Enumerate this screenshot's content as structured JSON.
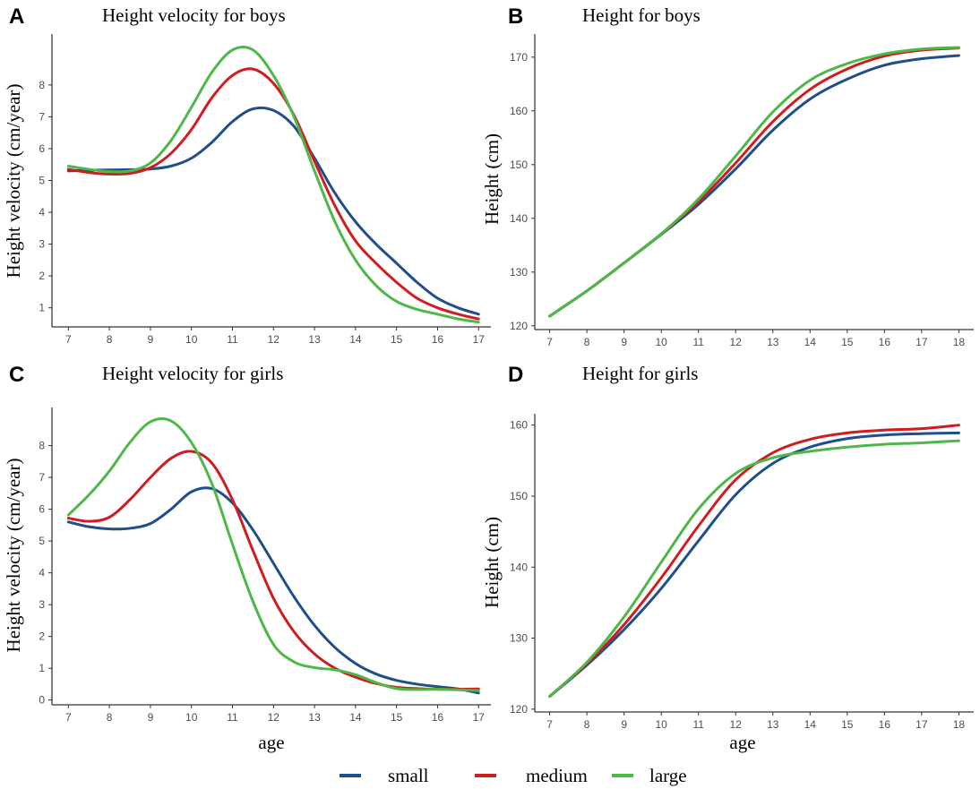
{
  "colors": {
    "small": "#1f4e8c",
    "medium": "#d01c1f",
    "large": "#4db848"
  },
  "legend": [
    {
      "key": "small",
      "label": "small"
    },
    {
      "key": "medium",
      "label": "medium"
    },
    {
      "key": "large",
      "label": "large"
    }
  ],
  "chart_data": [
    {
      "type": "line",
      "panel": "A",
      "title": "Height velocity for boys",
      "xlabel": "",
      "ylabel": "Height velocity (cm/year)",
      "xlim": [
        6.6,
        17.3
      ],
      "ylim": [
        0.4,
        9.6
      ],
      "xticks": [
        7,
        8,
        9,
        10,
        11,
        12,
        13,
        14,
        15,
        16,
        17
      ],
      "yticks": [
        1,
        2,
        3,
        4,
        5,
        6,
        7,
        8
      ],
      "series": [
        {
          "name": "small",
          "x": [
            7,
            7.5,
            8,
            8.5,
            9,
            9.5,
            10,
            10.5,
            11,
            11.5,
            12,
            12.5,
            13,
            13.5,
            14,
            14.5,
            15,
            15.5,
            16,
            16.5,
            17
          ],
          "y": [
            5.3,
            5.32,
            5.33,
            5.34,
            5.36,
            5.45,
            5.7,
            6.2,
            6.85,
            7.25,
            7.2,
            6.7,
            5.7,
            4.6,
            3.7,
            3.0,
            2.4,
            1.8,
            1.3,
            1.0,
            0.8
          ]
        },
        {
          "name": "medium",
          "x": [
            7,
            7.5,
            8,
            8.5,
            9,
            9.5,
            10,
            10.5,
            11,
            11.5,
            12,
            12.5,
            13,
            13.5,
            14,
            14.5,
            15,
            15.5,
            16,
            16.5,
            17
          ],
          "y": [
            5.35,
            5.25,
            5.2,
            5.22,
            5.4,
            5.85,
            6.6,
            7.6,
            8.3,
            8.5,
            8.05,
            7.05,
            5.6,
            4.2,
            3.1,
            2.4,
            1.8,
            1.3,
            1.0,
            0.8,
            0.65
          ]
        },
        {
          "name": "large",
          "x": [
            7,
            7.5,
            8,
            8.5,
            9,
            9.5,
            10,
            10.5,
            11,
            11.5,
            12,
            12.5,
            13,
            13.5,
            14,
            14.5,
            15,
            15.5,
            16,
            16.5,
            17
          ],
          "y": [
            5.45,
            5.35,
            5.28,
            5.3,
            5.55,
            6.25,
            7.3,
            8.4,
            9.1,
            9.1,
            8.3,
            7.0,
            5.3,
            3.7,
            2.5,
            1.7,
            1.2,
            0.95,
            0.8,
            0.65,
            0.55
          ]
        }
      ]
    },
    {
      "type": "line",
      "panel": "B",
      "title": "Height for boys",
      "xlabel": "",
      "ylabel": "Height (cm)",
      "xlim": [
        6.6,
        18.4
      ],
      "ylim": [
        119.3,
        174.3
      ],
      "xticks": [
        7,
        8,
        9,
        10,
        11,
        12,
        13,
        14,
        15,
        16,
        17,
        18
      ],
      "yticks": [
        120,
        130,
        140,
        150,
        160,
        170
      ],
      "series": [
        {
          "name": "small",
          "x": [
            7,
            8,
            9,
            10,
            11,
            12,
            13,
            14,
            15,
            16,
            17,
            18
          ],
          "y": [
            121.8,
            126.5,
            131.7,
            137.0,
            142.6,
            149.2,
            156.4,
            162.2,
            165.9,
            168.5,
            169.7,
            170.3
          ]
        },
        {
          "name": "medium",
          "x": [
            7,
            8,
            9,
            10,
            11,
            12,
            13,
            14,
            15,
            16,
            17,
            18
          ],
          "y": [
            121.8,
            126.5,
            131.7,
            137.1,
            143.1,
            150.3,
            158.0,
            164.0,
            167.8,
            170.2,
            171.3,
            171.7
          ]
        },
        {
          "name": "large",
          "x": [
            7,
            8,
            9,
            10,
            11,
            12,
            13,
            14,
            15,
            16,
            17,
            18
          ],
          "y": [
            121.8,
            126.5,
            131.7,
            137.1,
            143.6,
            151.6,
            159.8,
            165.7,
            168.8,
            170.6,
            171.5,
            171.8
          ]
        }
      ]
    },
    {
      "type": "line",
      "panel": "C",
      "title": "Height velocity for girls",
      "xlabel": "age",
      "ylabel": "Height velocity (cm/year)",
      "xlim": [
        6.6,
        17.3
      ],
      "ylim": [
        -0.15,
        9.2
      ],
      "xticks": [
        7,
        8,
        9,
        10,
        11,
        12,
        13,
        14,
        15,
        16,
        17
      ],
      "yticks": [
        0,
        1,
        2,
        3,
        4,
        5,
        6,
        7,
        8
      ],
      "series": [
        {
          "name": "small",
          "x": [
            7,
            7.5,
            8,
            8.5,
            9,
            9.5,
            10,
            10.5,
            11,
            11.5,
            12,
            12.5,
            13,
            13.5,
            14,
            14.5,
            15,
            15.5,
            16,
            16.5,
            17
          ],
          "y": [
            5.6,
            5.45,
            5.38,
            5.4,
            5.55,
            6.0,
            6.55,
            6.65,
            6.2,
            5.35,
            4.3,
            3.25,
            2.35,
            1.65,
            1.15,
            0.82,
            0.62,
            0.5,
            0.42,
            0.35,
            0.22
          ]
        },
        {
          "name": "medium",
          "x": [
            7,
            7.5,
            8,
            8.5,
            9,
            9.5,
            10,
            10.5,
            11,
            11.5,
            12,
            12.5,
            13,
            13.5,
            14,
            14.5,
            15,
            15.5,
            16,
            16.5,
            17
          ],
          "y": [
            5.72,
            5.62,
            5.75,
            6.3,
            7.0,
            7.6,
            7.82,
            7.45,
            6.3,
            4.7,
            3.2,
            2.15,
            1.45,
            1.0,
            0.72,
            0.52,
            0.4,
            0.36,
            0.34,
            0.34,
            0.35
          ]
        },
        {
          "name": "large",
          "x": [
            7,
            7.5,
            8,
            8.5,
            9,
            9.5,
            10,
            10.5,
            11,
            11.5,
            12,
            12.5,
            13,
            13.5,
            14,
            14.5,
            15,
            15.5,
            16,
            16.5,
            17
          ],
          "y": [
            5.82,
            6.45,
            7.2,
            8.1,
            8.75,
            8.78,
            8.1,
            6.8,
            4.9,
            3.1,
            1.75,
            1.2,
            1.02,
            0.95,
            0.8,
            0.55,
            0.36,
            0.33,
            0.34,
            0.32,
            0.3
          ]
        }
      ]
    },
    {
      "type": "line",
      "panel": "D",
      "title": "Height for girls",
      "xlabel": "age",
      "ylabel": "Height (cm)",
      "xlim": [
        6.6,
        18.4
      ],
      "ylim": [
        119.6,
        161.6
      ],
      "xticks": [
        7,
        8,
        9,
        10,
        11,
        12,
        13,
        14,
        15,
        16,
        17,
        18
      ],
      "yticks": [
        120,
        130,
        140,
        150,
        160
      ],
      "series": [
        {
          "name": "small",
          "x": [
            7,
            8,
            9,
            10,
            11,
            12,
            13,
            14,
            15,
            16,
            17,
            18
          ],
          "y": [
            121.8,
            126.2,
            131.2,
            137.0,
            143.7,
            150.2,
            154.6,
            156.9,
            158.1,
            158.6,
            158.8,
            158.9
          ]
        },
        {
          "name": "medium",
          "x": [
            7,
            8,
            9,
            10,
            11,
            12,
            13,
            14,
            15,
            16,
            17,
            18
          ],
          "y": [
            121.8,
            126.4,
            131.9,
            138.5,
            145.8,
            152.3,
            156.1,
            158.0,
            158.9,
            159.3,
            159.5,
            160.0
          ]
        },
        {
          "name": "large",
          "x": [
            7,
            8,
            9,
            10,
            11,
            12,
            13,
            14,
            15,
            16,
            17,
            18
          ],
          "y": [
            121.8,
            126.6,
            133.0,
            140.7,
            148.2,
            153.2,
            155.4,
            156.3,
            156.9,
            157.3,
            157.5,
            157.8
          ]
        }
      ]
    }
  ]
}
